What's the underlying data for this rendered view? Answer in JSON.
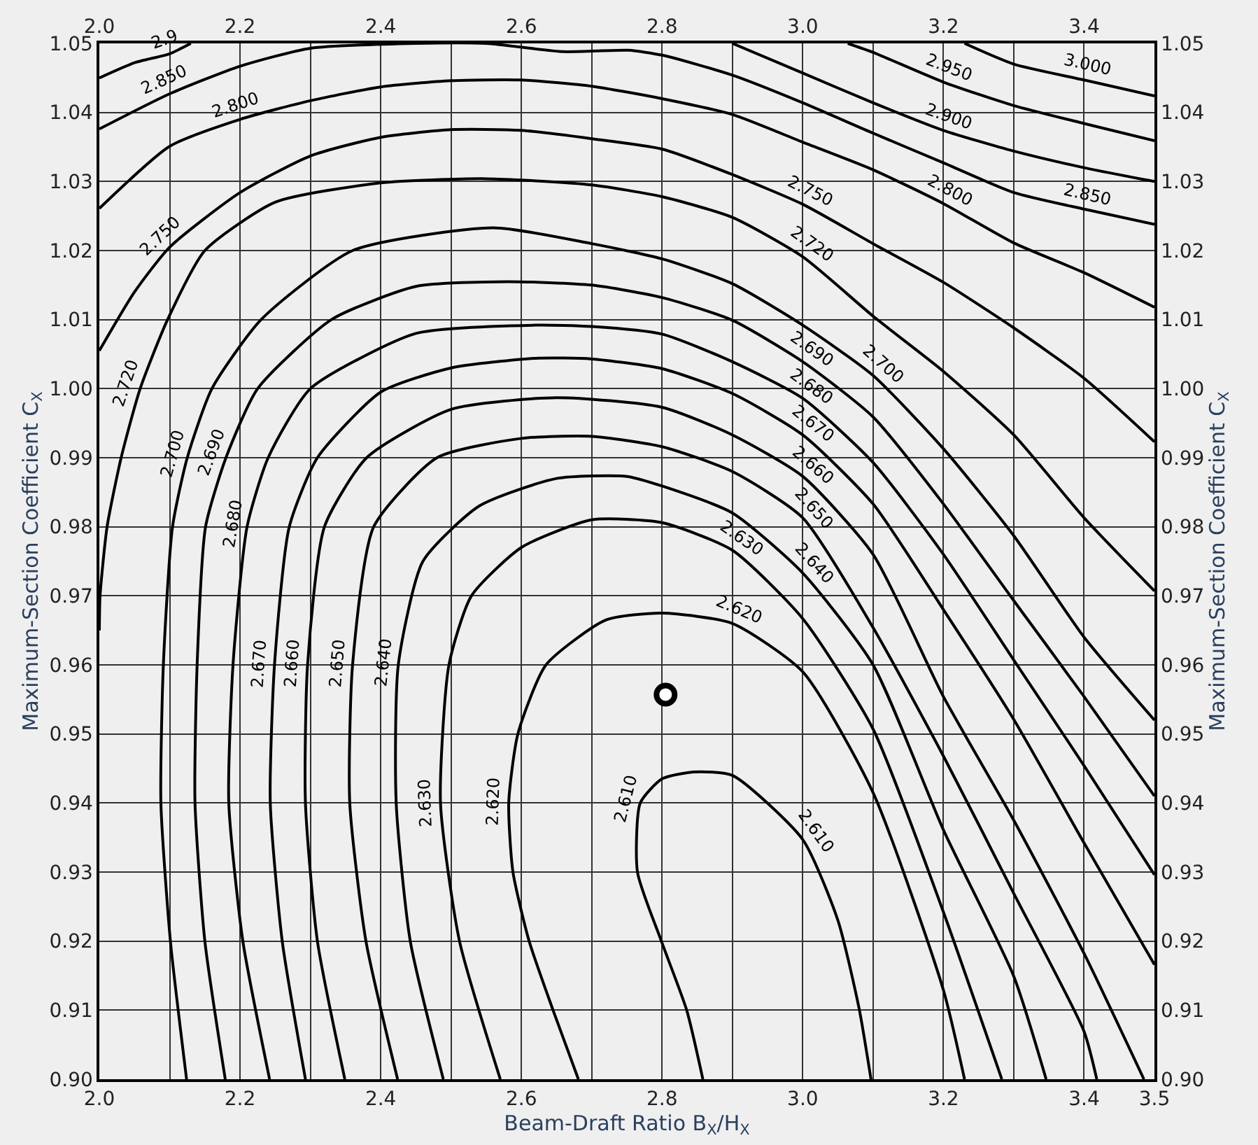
{
  "chart_data": {
    "type": "line",
    "xlabel": "Beam-Draft Ratio B$_{X}$/H$_{X}$",
    "ylabel": "Maximum-Section Coefficient C$_{X}$",
    "y2label": "Maximum-Section Coefficient C$_{X}$",
    "xlim": [
      2.0,
      3.5
    ],
    "ylim": [
      0.9,
      1.05
    ],
    "y2lim": [
      0.9,
      1.05
    ],
    "x2lim": [
      2.0,
      3.5
    ],
    "xticks": [
      {
        "value": 2.0,
        "label": "2.0"
      },
      {
        "value": 2.1,
        "label": null
      },
      {
        "value": 2.2,
        "label": "2.2"
      },
      {
        "value": 2.3,
        "label": null
      },
      {
        "value": 2.4,
        "label": "2.4"
      },
      {
        "value": 2.5,
        "label": null
      },
      {
        "value": 2.6,
        "label": "2.6"
      },
      {
        "value": 2.7,
        "label": null
      },
      {
        "value": 2.8,
        "label": "2.8"
      },
      {
        "value": 2.9,
        "label": null
      },
      {
        "value": 3.0,
        "label": "3.0"
      },
      {
        "value": 3.1,
        "label": null
      },
      {
        "value": 3.2,
        "label": "3.2"
      },
      {
        "value": 3.3,
        "label": null
      },
      {
        "value": 3.4,
        "label": "3.4"
      },
      {
        "value": 3.5,
        "label": "3.5"
      }
    ],
    "x2ticks": [
      {
        "value": 2.0,
        "label": "2.0"
      },
      {
        "value": 2.2,
        "label": "2.2"
      },
      {
        "value": 2.4,
        "label": "2.4"
      },
      {
        "value": 2.6,
        "label": "2.6"
      },
      {
        "value": 2.8,
        "label": "2.8"
      },
      {
        "value": 3.0,
        "label": "3.0"
      },
      {
        "value": 3.2,
        "label": "3.2"
      },
      {
        "value": 3.4,
        "label": "3.4"
      }
    ],
    "yticks": [
      {
        "value": 0.9,
        "label": "0.90"
      },
      {
        "value": 0.91,
        "label": "0.91"
      },
      {
        "value": 0.92,
        "label": "0.92"
      },
      {
        "value": 0.93,
        "label": "0.93"
      },
      {
        "value": 0.94,
        "label": "0.94"
      },
      {
        "value": 0.95,
        "label": "0.95"
      },
      {
        "value": 0.96,
        "label": "0.96"
      },
      {
        "value": 0.97,
        "label": "0.97"
      },
      {
        "value": 0.98,
        "label": "0.98"
      },
      {
        "value": 0.99,
        "label": "0.99"
      },
      {
        "value": 1.0,
        "label": "1.00"
      },
      {
        "value": 1.01,
        "label": "1.01"
      },
      {
        "value": 1.02,
        "label": "1.02"
      },
      {
        "value": 1.03,
        "label": "1.03"
      },
      {
        "value": 1.04,
        "label": "1.04"
      },
      {
        "value": 1.05,
        "label": "1.05"
      }
    ],
    "y2ticks": [
      {
        "value": 0.9,
        "label": "0.90"
      },
      {
        "value": 0.91,
        "label": "0.91"
      },
      {
        "value": 0.92,
        "label": "0.92"
      },
      {
        "value": 0.93,
        "label": "0.93"
      },
      {
        "value": 0.94,
        "label": "0.94"
      },
      {
        "value": 0.95,
        "label": "0.95"
      },
      {
        "value": 0.96,
        "label": "0.96"
      },
      {
        "value": 0.97,
        "label": "0.97"
      },
      {
        "value": 0.98,
        "label": "0.98"
      },
      {
        "value": 0.99,
        "label": "0.99"
      },
      {
        "value": 1.0,
        "label": "1.00"
      },
      {
        "value": 1.01,
        "label": "1.01"
      },
      {
        "value": 1.02,
        "label": "1.02"
      },
      {
        "value": 1.03,
        "label": "1.03"
      },
      {
        "value": 1.04,
        "label": "1.04"
      },
      {
        "value": 1.05,
        "label": "1.05"
      }
    ],
    "grid": true,
    "legend": false,
    "marker": "none",
    "line_style": "solid",
    "series": [
      {
        "name": "2.9",
        "color": "#000000",
        "x": [
          2.0,
          2.05,
          2.1,
          2.13
        ],
        "values": [
          1.045,
          1.0472,
          1.0485,
          1.05
        ]
      },
      {
        "name": "2.850",
        "color": "#000000",
        "x": [
          2.0,
          2.1,
          2.2,
          2.3,
          2.45,
          2.55,
          2.66,
          2.752,
          2.8,
          2.9,
          3.0,
          3.1,
          3.2,
          3.3,
          3.4,
          3.5
        ],
        "values": [
          1.0376,
          1.0427,
          1.0467,
          1.0493,
          1.05,
          1.05,
          1.0488,
          1.049,
          1.0483,
          1.0454,
          1.0414,
          1.037,
          1.0327,
          1.0284,
          1.026,
          1.0238
        ]
      },
      {
        "name": "2.800",
        "color": "#000000",
        "x": [
          2.0,
          2.1,
          2.2,
          2.3,
          2.4,
          2.5,
          2.6,
          2.7,
          2.8,
          2.9,
          3.0,
          3.1,
          3.2,
          3.3,
          3.4,
          3.5
        ],
        "values": [
          1.0261,
          1.0351,
          1.039,
          1.0417,
          1.0437,
          1.0446,
          1.0447,
          1.0438,
          1.042,
          1.0397,
          1.0357,
          1.0317,
          1.0268,
          1.0211,
          1.0168,
          1.0118
        ]
      },
      {
        "name": "2.750",
        "color": "#000000",
        "x": [
          2.0,
          2.05,
          2.1,
          2.2,
          2.3,
          2.4,
          2.5,
          2.6,
          2.7,
          2.8,
          2.9,
          3.0,
          3.1,
          3.2,
          3.3,
          3.4,
          3.5
        ],
        "values": [
          1.0055,
          1.014,
          1.0205,
          1.0284,
          1.0337,
          1.0364,
          1.0375,
          1.0374,
          1.0362,
          1.0347,
          1.031,
          1.0267,
          1.021,
          1.0154,
          1.0088,
          1.0015,
          0.9923
        ]
      },
      {
        "name": "2.720",
        "color": "#000000",
        "x": [
          2.0,
          2.001,
          2.011,
          2.031,
          2.058,
          2.097,
          2.15,
          2.25,
          2.4,
          2.55,
          2.7,
          2.8,
          2.9,
          3.0,
          3.1,
          3.2,
          3.3,
          3.4,
          3.5
        ],
        "values": [
          0.965,
          0.97,
          0.98,
          0.99,
          1.0,
          1.01,
          1.02,
          1.027,
          1.0298,
          1.0304,
          1.0295,
          1.0278,
          1.0248,
          1.0191,
          1.0105,
          1.0025,
          0.9933,
          0.9813,
          0.9707
        ]
      },
      {
        "name": "2.700",
        "color": "#000000",
        "x": [
          2.124,
          2.101,
          2.0875,
          2.091,
          2.104,
          2.125,
          2.16,
          2.23,
          2.36,
          2.56,
          2.7,
          2.8,
          2.9,
          3.0,
          3.1,
          3.2,
          3.3,
          3.4,
          3.5
        ],
        "values": [
          0.9,
          0.92,
          0.94,
          0.96,
          0.98,
          0.99,
          1.0,
          1.01,
          1.02,
          1.0233,
          1.021,
          1.0188,
          1.0152,
          1.0092,
          1.0019,
          0.9913,
          0.9787,
          0.964,
          0.952
        ]
      },
      {
        "name": "2.690",
        "color": "#000000",
        "x": [
          2.179,
          2.15,
          2.136,
          2.139,
          2.151,
          2.18,
          2.225,
          2.33,
          2.45,
          2.58,
          2.7,
          2.8,
          2.9,
          3.0,
          3.1,
          3.2,
          3.3,
          3.4,
          3.5
        ],
        "values": [
          0.9,
          0.92,
          0.94,
          0.96,
          0.98,
          0.99,
          1.0,
          1.01,
          1.0148,
          1.0155,
          1.015,
          1.0132,
          1.0099,
          1.0039,
          0.9959,
          0.9833,
          0.9693,
          0.9554,
          0.941
        ]
      },
      {
        "name": "2.680",
        "color": "#000000",
        "x": [
          2.242,
          2.204,
          2.184,
          2.19,
          2.21,
          2.24,
          2.3,
          2.45,
          2.62,
          2.7,
          2.8,
          2.9,
          3.0,
          3.1,
          3.2,
          3.3,
          3.4,
          3.5
        ],
        "values": [
          0.9,
          0.92,
          0.94,
          0.96,
          0.98,
          0.99,
          1.0,
          1.008,
          1.0092,
          1.009,
          1.0079,
          1.0039,
          0.9986,
          0.9893,
          0.976,
          0.9607,
          0.9454,
          0.9296
        ]
      },
      {
        "name": "2.670",
        "color": "#000000",
        "x": [
          2.293,
          2.26,
          2.243,
          2.249,
          2.27,
          2.31,
          2.4,
          2.5,
          2.62,
          2.7,
          2.8,
          2.9,
          3.0,
          3.1,
          3.2,
          3.3,
          3.4,
          3.5
        ],
        "values": [
          0.9,
          0.92,
          0.94,
          0.96,
          0.98,
          0.99,
          0.9995,
          1.003,
          1.0044,
          1.0043,
          1.0029,
          0.9993,
          0.9933,
          0.9833,
          0.968,
          0.9521,
          0.9342,
          0.9166
        ]
      },
      {
        "name": "2.660",
        "color": "#000000",
        "x": [
          2.349,
          2.31,
          2.293,
          2.296,
          2.32,
          2.38,
          2.5,
          2.65,
          2.8,
          2.9,
          3.0,
          3.1,
          3.2,
          3.3,
          3.4,
          3.485
        ],
        "values": [
          0.9,
          0.92,
          0.94,
          0.96,
          0.98,
          0.99,
          0.997,
          0.9987,
          0.9973,
          0.9933,
          0.9873,
          0.976,
          0.9554,
          0.9375,
          0.9182,
          0.9
        ]
      },
      {
        "name": "2.650",
        "color": "#000000",
        "x": [
          2.424,
          2.379,
          2.356,
          2.36,
          2.39,
          2.48,
          2.6,
          2.7,
          2.8,
          2.9,
          3.0,
          3.1,
          3.2,
          3.3,
          3.4,
          3.418
        ],
        "values": [
          0.9,
          0.92,
          0.94,
          0.96,
          0.98,
          0.99,
          0.9928,
          0.9931,
          0.9916,
          0.988,
          0.9813,
          0.9654,
          0.9468,
          0.9269,
          0.9069,
          0.9
        ]
      },
      {
        "name": "2.640",
        "color": "#000000",
        "x": [
          2.489,
          2.442,
          2.422,
          2.425,
          2.46,
          2.54,
          2.65,
          2.75,
          2.8,
          2.9,
          3.0,
          3.1,
          3.2,
          3.3,
          3.346
        ],
        "values": [
          0.9,
          0.92,
          0.94,
          0.96,
          0.975,
          0.983,
          0.987,
          0.9873,
          0.9859,
          0.982,
          0.9733,
          0.96,
          0.9361,
          0.9149,
          0.9
        ]
      },
      {
        "name": "2.630",
        "color": "#000000",
        "x": [
          2.57,
          2.512,
          2.485,
          2.497,
          2.529,
          2.6,
          2.7,
          2.8,
          2.9,
          3.0,
          3.1,
          3.2,
          3.283
        ],
        "values": [
          0.9,
          0.92,
          0.94,
          0.96,
          0.97,
          0.977,
          0.981,
          0.9806,
          0.9766,
          0.9667,
          0.9507,
          0.9242,
          0.9
        ]
      },
      {
        "name": "2.620",
        "color": "#000000",
        "x": [
          2.681,
          2.645,
          2.611,
          2.588,
          2.582,
          2.595,
          2.635,
          2.72,
          2.8,
          2.9,
          3.0,
          3.1,
          3.2,
          3.23
        ],
        "values": [
          0.9,
          0.91,
          0.92,
          0.93,
          0.94,
          0.95,
          0.96,
          0.9665,
          0.9675,
          0.966,
          0.959,
          0.9415,
          0.9129,
          0.9
        ]
      },
      {
        "name": "2.610",
        "color": "#000000",
        "x": [
          2.858,
          2.835,
          2.799,
          2.765,
          2.769,
          2.8,
          2.845,
          2.9,
          3.0,
          3.05,
          3.08,
          3.097
        ],
        "values": [
          0.9,
          0.91,
          0.92,
          0.93,
          0.94,
          0.9435,
          0.9445,
          0.944,
          0.9347,
          0.923,
          0.9103,
          0.9
        ]
      },
      {
        "name": "2.900",
        "color": "#000000",
        "x": [
          2.9,
          3.0,
          3.1,
          3.2,
          3.3,
          3.4,
          3.5
        ],
        "values": [
          1.05,
          1.0457,
          1.0414,
          1.0374,
          1.0344,
          1.032,
          1.03
        ]
      },
      {
        "name": "2.950",
        "color": "#000000",
        "x": [
          3.064,
          3.1,
          3.2,
          3.3,
          3.4,
          3.5
        ],
        "values": [
          1.05,
          1.0487,
          1.0444,
          1.041,
          1.0384,
          1.0359
        ]
      },
      {
        "name": "3.000",
        "color": "#000000",
        "x": [
          3.23,
          3.3,
          3.4,
          3.5
        ],
        "values": [
          1.05,
          1.047,
          1.0447,
          1.0424
        ]
      },
      {
        "type": "scatter",
        "marker": "circle",
        "color": "#000000",
        "x": [
          2.805
        ],
        "values": [
          0.9557
        ]
      }
    ]
  }
}
